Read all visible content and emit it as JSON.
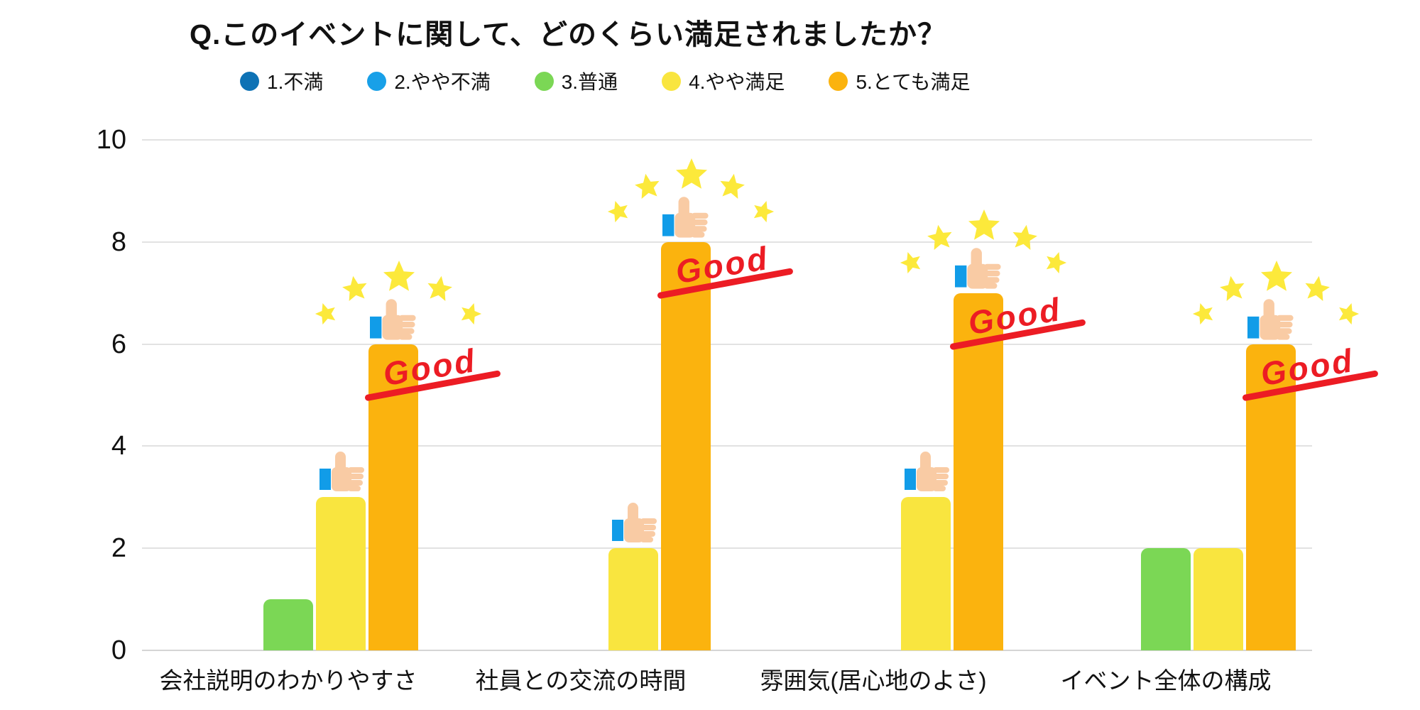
{
  "chart_data": {
    "type": "bar",
    "title": "Q.このイベントに関して、どのくらい満足されましたか？",
    "categories": [
      "会社説明のわかりやすさ",
      "社員との交流の時間",
      "雰囲気(居心地のよさ)",
      "イベント全体の構成"
    ],
    "series": [
      {
        "name": "1.不満",
        "color": "#0E72B5",
        "values": [
          0,
          0,
          0,
          0
        ]
      },
      {
        "name": "2.やや不満",
        "color": "#18A0E8",
        "values": [
          0,
          0,
          0,
          0
        ]
      },
      {
        "name": "3.普通",
        "color": "#7BD755",
        "values": [
          1,
          0,
          0,
          2
        ]
      },
      {
        "name": "4.やや満足",
        "color": "#F9E53F",
        "values": [
          3,
          2,
          3,
          2
        ]
      },
      {
        "name": "5.とても満足",
        "color": "#FBB30E",
        "values": [
          6,
          8,
          7,
          6
        ]
      }
    ],
    "ylim": [
      0,
      10
    ],
    "yticks": [
      0,
      2,
      4,
      6,
      8,
      10
    ],
    "grid": true,
    "legend_position": "top",
    "annotations": {
      "good_label": "Good",
      "good_color": "#EC1C24",
      "star_color": "#FCE93B",
      "thumb_skin_color": "#F9CBA4",
      "thumb_sleeve_color": "#119CE8",
      "celebration": {
        "series_index": 4,
        "per_category": [
          true,
          true,
          true,
          true
        ]
      },
      "plain_thumb": {
        "series_index": 3,
        "per_category": [
          true,
          true,
          true,
          false
        ]
      }
    }
  },
  "icons": {
    "thumb": "thumbs-up-icon",
    "star": "star-icon",
    "legend_dot": "legend-color-dot"
  }
}
